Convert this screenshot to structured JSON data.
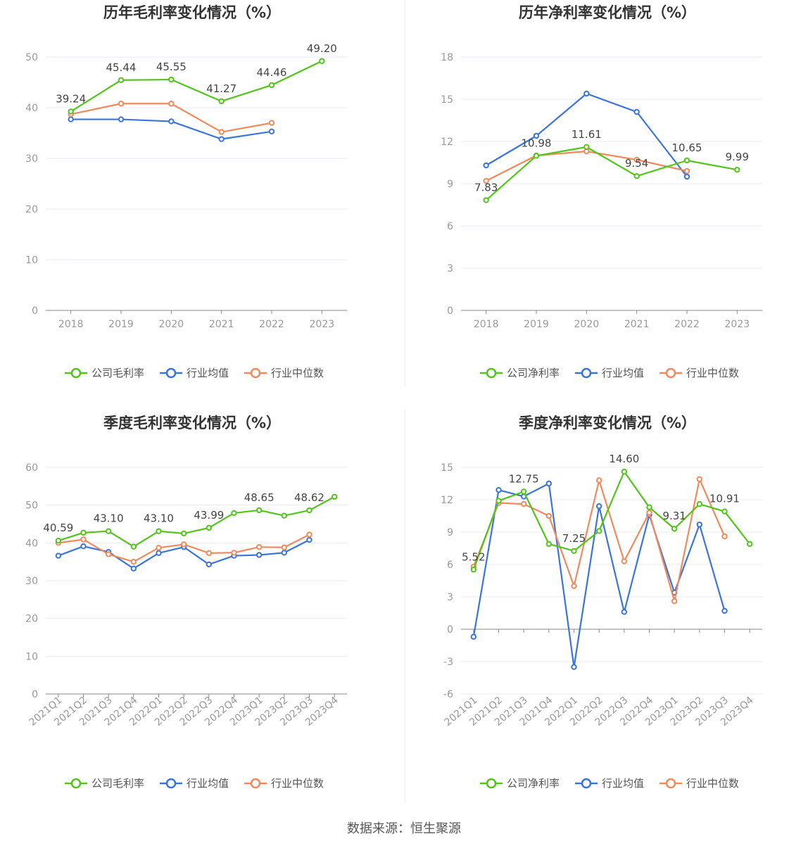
{
  "source_text": "数据来源：恒生聚源",
  "colors": {
    "company": "#52c41a",
    "avg": "#3b74db",
    "median": "#f08a5d",
    "grid": "#e8ebf3",
    "axis": "#888888",
    "tick_text": "#999999",
    "title": "#333333",
    "legend_text": "#555555"
  },
  "chart_data": [
    {
      "type": "line",
      "title": "历年毛利率变化情况（%）",
      "categories": [
        "2018",
        "2019",
        "2020",
        "2021",
        "2022",
        "2023"
      ],
      "ylim": [
        0,
        50
      ],
      "yticks": [
        0,
        10,
        20,
        30,
        40,
        50
      ],
      "series": [
        {
          "name": "公司毛利率",
          "key": "company",
          "values": [
            39.24,
            45.44,
            45.55,
            41.27,
            44.46,
            49.2
          ],
          "labels": [
            "39.24",
            "45.44",
            "45.55",
            "41.27",
            "44.46",
            "49.20"
          ]
        },
        {
          "name": "行业均值",
          "key": "avg",
          "values": [
            37.7,
            37.7,
            37.3,
            33.8,
            35.3,
            null
          ]
        },
        {
          "name": "行业中位数",
          "key": "median",
          "values": [
            38.7,
            40.8,
            40.8,
            35.2,
            37.0,
            null
          ]
        }
      ]
    },
    {
      "type": "line",
      "title": "历年净利率变化情况（%）",
      "categories": [
        "2018",
        "2019",
        "2020",
        "2021",
        "2022",
        "2023"
      ],
      "ylim": [
        0,
        18
      ],
      "yticks": [
        0,
        3,
        6,
        9,
        12,
        15,
        18
      ],
      "series": [
        {
          "name": "公司净利率",
          "key": "company",
          "values": [
            7.83,
            10.98,
            11.61,
            9.54,
            10.65,
            9.99
          ],
          "labels": [
            "7.83",
            "10.98",
            "11.61",
            "9.54",
            "10.65",
            "9.99"
          ]
        },
        {
          "name": "行业均值",
          "key": "avg",
          "values": [
            10.3,
            12.4,
            15.4,
            14.1,
            9.5,
            null
          ]
        },
        {
          "name": "行业中位数",
          "key": "median",
          "values": [
            9.2,
            11.0,
            11.3,
            10.7,
            9.9,
            null
          ]
        }
      ]
    },
    {
      "type": "line",
      "title": "季度毛利率变化情况（%）",
      "categories": [
        "2021Q1",
        "2021Q2",
        "2021Q3",
        "2021Q4",
        "2022Q1",
        "2022Q2",
        "2022Q3",
        "2022Q4",
        "2023Q1",
        "2023Q2",
        "2023Q3",
        "2023Q4"
      ],
      "ylim": [
        0,
        60
      ],
      "yticks": [
        0,
        10,
        20,
        30,
        40,
        50,
        60
      ],
      "series": [
        {
          "name": "公司毛利率",
          "key": "company",
          "values": [
            40.59,
            42.7,
            43.1,
            39.0,
            43.1,
            42.5,
            43.99,
            47.9,
            48.65,
            47.2,
            48.62,
            52.2
          ],
          "labels": [
            "40.59",
            "",
            "43.10",
            "",
            "43.10",
            "",
            "43.99",
            "",
            "48.65",
            "",
            "48.62",
            ""
          ]
        },
        {
          "name": "行业均值",
          "key": "avg",
          "values": [
            36.6,
            39.1,
            37.6,
            33.2,
            37.3,
            38.9,
            34.3,
            36.6,
            36.8,
            37.4,
            40.8,
            null
          ]
        },
        {
          "name": "行业中位数",
          "key": "median",
          "values": [
            40.0,
            40.9,
            37.0,
            35.0,
            38.7,
            39.6,
            37.3,
            37.4,
            38.9,
            38.8,
            42.2,
            null
          ]
        }
      ]
    },
    {
      "type": "line",
      "title": "季度净利率变化情况（%）",
      "categories": [
        "2021Q1",
        "2021Q2",
        "2021Q3",
        "2021Q4",
        "2022Q1",
        "2022Q2",
        "2022Q3",
        "2022Q4",
        "2023Q1",
        "2023Q2",
        "2023Q3",
        "2023Q4"
      ],
      "ylim": [
        -6,
        15
      ],
      "yticks": [
        -6,
        -3,
        0,
        3,
        6,
        9,
        12,
        15
      ],
      "series": [
        {
          "name": "公司净利率",
          "key": "company",
          "values": [
            5.52,
            11.9,
            12.75,
            7.9,
            7.25,
            9.1,
            14.6,
            11.3,
            9.31,
            11.6,
            10.91,
            7.9
          ],
          "labels": [
            "5.52",
            "",
            "12.75",
            "",
            "7.25",
            "",
            "14.60",
            "",
            "9.31",
            "",
            "10.91",
            ""
          ]
        },
        {
          "name": "行业均值",
          "key": "avg",
          "values": [
            -0.7,
            12.9,
            12.3,
            13.5,
            -3.5,
            11.4,
            1.6,
            10.6,
            3.4,
            9.7,
            1.7,
            null
          ]
        },
        {
          "name": "行业中位数",
          "key": "median",
          "values": [
            5.8,
            11.7,
            11.6,
            10.5,
            4.0,
            13.8,
            6.3,
            10.8,
            2.6,
            13.9,
            8.6,
            null
          ]
        }
      ]
    }
  ]
}
